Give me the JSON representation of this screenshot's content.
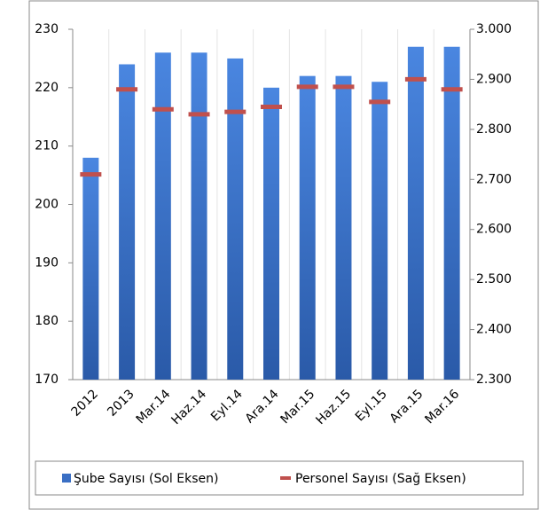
{
  "chart_data": {
    "type": "bar_marker",
    "categories": [
      "2012",
      "2013",
      "Mar.14",
      "Haz.14",
      "Eyl.14",
      "Ara.14",
      "Mar.15",
      "Haz.15",
      "Eyl.15",
      "Ara.15",
      "Mar.16"
    ],
    "series": [
      {
        "name": "Şube Sayısı (Sol Eksen)",
        "color": "#3a6fc4",
        "values": [
          208,
          224,
          226,
          226,
          225,
          220,
          222,
          222,
          221,
          227,
          227
        ]
      },
      {
        "name": "Personel Sayısı (Sağ Eksen)",
        "color": "#c0504d",
        "axis": "y2",
        "values": [
          2710,
          2880,
          2840,
          2830,
          2835,
          2845,
          2885,
          2885,
          2855,
          2900,
          2880
        ]
      }
    ],
    "ylim": [
      170,
      230
    ],
    "yticks": [
      170,
      180,
      190,
      200,
      210,
      220,
      230
    ],
    "y2lim": [
      2300,
      3000
    ],
    "y2ticks": [
      {
        "value": 2300,
        "label": "2.300"
      },
      {
        "value": 2400,
        "label": "2.400"
      },
      {
        "value": 2500,
        "label": "2.500"
      },
      {
        "value": 2600,
        "label": "2.600"
      },
      {
        "value": 2700,
        "label": "2.700"
      },
      {
        "value": 2800,
        "label": "2.800"
      },
      {
        "value": 2900,
        "label": "2.900"
      },
      {
        "value": 3000,
        "label": "3.000"
      }
    ],
    "legend": "bottom"
  }
}
